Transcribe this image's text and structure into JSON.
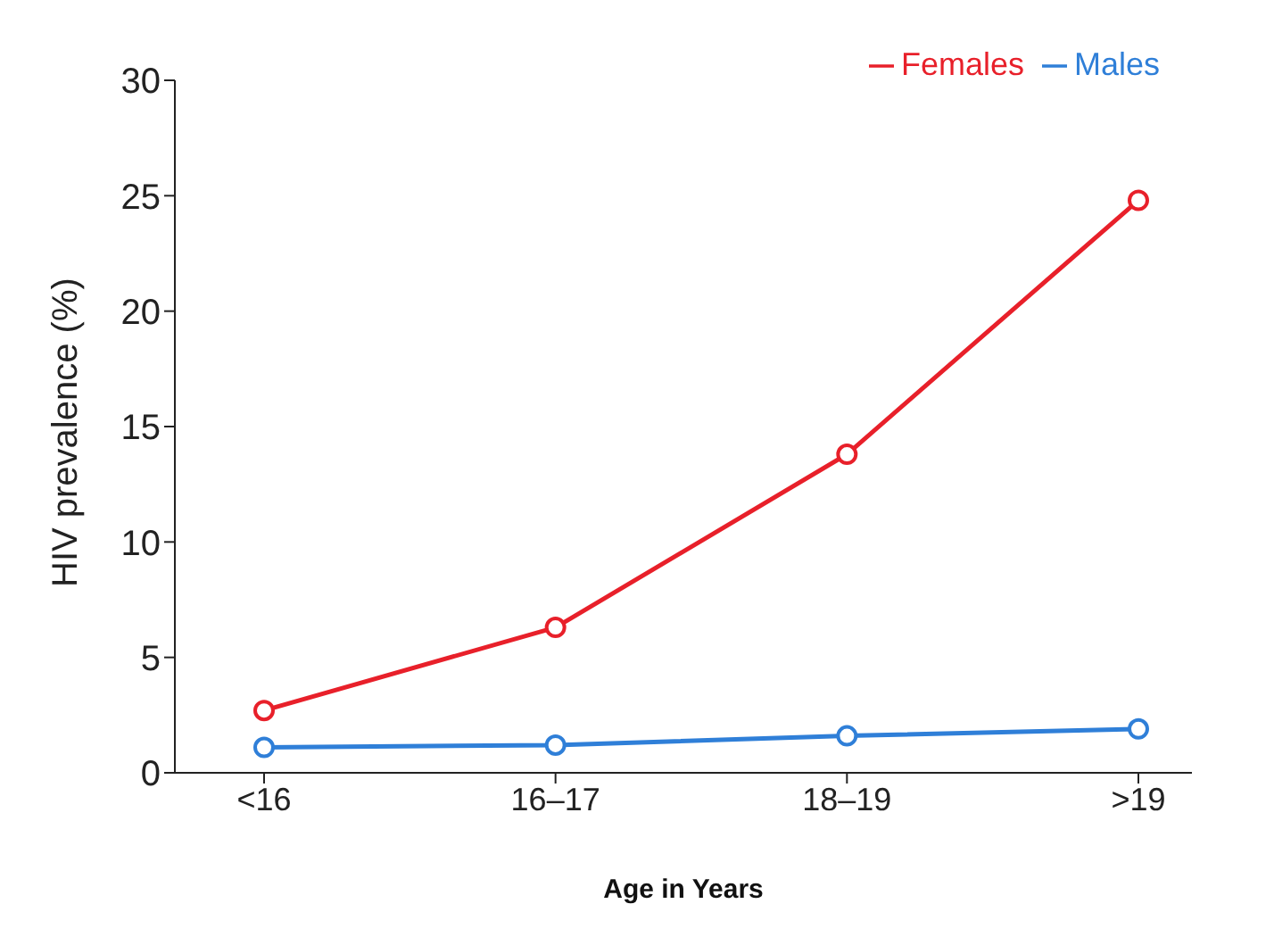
{
  "chart_data": {
    "type": "line",
    "xlabel": "Age in Years",
    "ylabel": "HIV prevalence (%)",
    "categories": [
      "<16",
      "16–17",
      "18–19",
      ">19"
    ],
    "series": [
      {
        "name": "Males",
        "color": "#2f7fd8",
        "values": [
          1.1,
          1.2,
          1.6,
          1.9
        ]
      },
      {
        "name": "Females",
        "color": "#e8202a",
        "values": [
          2.7,
          6.3,
          13.8,
          24.8
        ]
      }
    ],
    "ylim": [
      0,
      30
    ],
    "yticks": [
      0,
      5,
      10,
      15,
      20,
      25,
      30
    ],
    "legend": "top right",
    "marker": "circle",
    "line_style": "solid",
    "grid": false
  }
}
